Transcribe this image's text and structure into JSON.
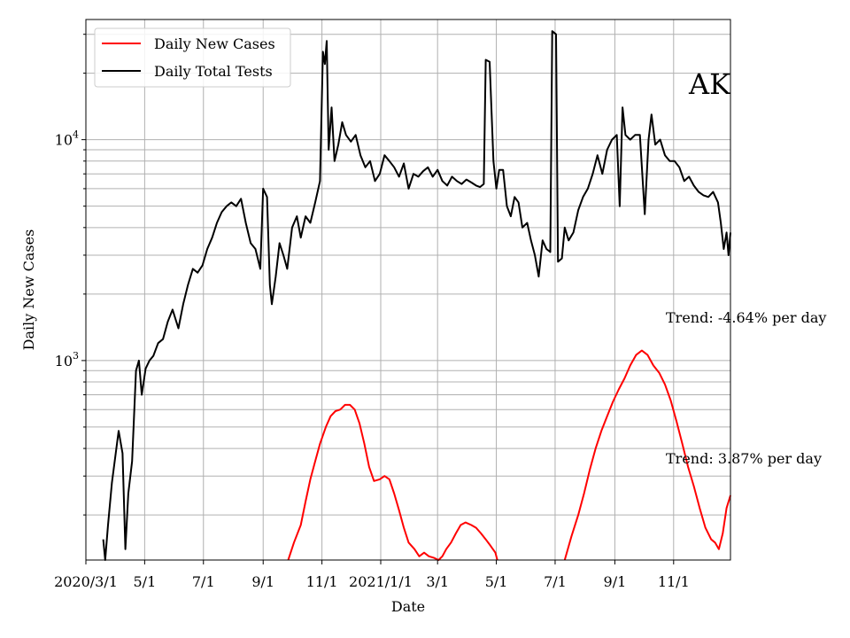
{
  "chart_data": {
    "type": "line",
    "title": "",
    "xlabel": "Date",
    "ylabel": "Daily New Cases",
    "y_scale": "log",
    "ylim": [
      125,
      35000
    ],
    "xlim": [
      "2020-03-01",
      "2021-12-30"
    ],
    "grid": true,
    "legend_position": "top-left",
    "x_ticks": [
      {
        "date": "2020-03-01",
        "label": "2020/3/1"
      },
      {
        "date": "2020-05-01",
        "label": "5/1"
      },
      {
        "date": "2020-07-01",
        "label": "7/1"
      },
      {
        "date": "2020-09-01",
        "label": "9/1"
      },
      {
        "date": "2020-11-01",
        "label": "11/1"
      },
      {
        "date": "2021-01-01",
        "label": "2021/1/1"
      },
      {
        "date": "2021-03-01",
        "label": "3/1"
      },
      {
        "date": "2021-05-01",
        "label": "5/1"
      },
      {
        "date": "2021-07-01",
        "label": "7/1"
      },
      {
        "date": "2021-09-01",
        "label": "9/1"
      },
      {
        "date": "2021-11-01",
        "label": "11/1"
      }
    ],
    "y_major_ticks": [
      {
        "value": 1000,
        "base": "10",
        "exp": "3"
      },
      {
        "value": 10000,
        "base": "10",
        "exp": "4"
      }
    ],
    "state_label": "AK",
    "annotations": [
      {
        "text": "Trend: -4.64% per day"
      },
      {
        "text": "Trend: 3.87% per day"
      }
    ],
    "series": [
      {
        "name": "Daily New Cases",
        "color": "#ff0000",
        "points": [
          [
            "2020-09-27",
            125
          ],
          [
            "2020-10-03",
            150
          ],
          [
            "2020-10-10",
            180
          ],
          [
            "2020-10-15",
            230
          ],
          [
            "2020-10-20",
            290
          ],
          [
            "2020-10-25",
            350
          ],
          [
            "2020-10-30",
            420
          ],
          [
            "2020-11-05",
            500
          ],
          [
            "2020-11-10",
            560
          ],
          [
            "2020-11-15",
            590
          ],
          [
            "2020-11-20",
            600
          ],
          [
            "2020-11-25",
            630
          ],
          [
            "2020-11-30",
            630
          ],
          [
            "2020-12-05",
            600
          ],
          [
            "2020-12-10",
            520
          ],
          [
            "2020-12-15",
            420
          ],
          [
            "2020-12-20",
            330
          ],
          [
            "2020-12-25",
            285
          ],
          [
            "2020-12-31",
            290
          ],
          [
            "2021-01-05",
            300
          ],
          [
            "2021-01-10",
            290
          ],
          [
            "2021-01-15",
            250
          ],
          [
            "2021-01-20",
            210
          ],
          [
            "2021-01-25",
            175
          ],
          [
            "2021-01-30",
            150
          ],
          [
            "2021-02-05",
            140
          ],
          [
            "2021-02-10",
            130
          ],
          [
            "2021-02-15",
            135
          ],
          [
            "2021-02-20",
            130
          ],
          [
            "2021-02-25",
            128
          ],
          [
            "2021-03-02",
            125
          ],
          [
            "2021-03-06",
            130
          ],
          [
            "2021-03-10",
            140
          ],
          [
            "2021-03-15",
            150
          ],
          [
            "2021-03-20",
            165
          ],
          [
            "2021-03-25",
            180
          ],
          [
            "2021-03-30",
            185
          ],
          [
            "2021-04-05",
            180
          ],
          [
            "2021-04-10",
            175
          ],
          [
            "2021-04-15",
            165
          ],
          [
            "2021-04-20",
            155
          ],
          [
            "2021-04-25",
            145
          ],
          [
            "2021-04-30",
            135
          ],
          [
            "2021-05-02",
            125
          ]
        ],
        "points2": [
          [
            "2021-07-11",
            125
          ],
          [
            "2021-07-18",
            160
          ],
          [
            "2021-07-25",
            200
          ],
          [
            "2021-07-31",
            250
          ],
          [
            "2021-08-06",
            320
          ],
          [
            "2021-08-12",
            400
          ],
          [
            "2021-08-18",
            480
          ],
          [
            "2021-08-24",
            560
          ],
          [
            "2021-08-30",
            650
          ],
          [
            "2021-09-05",
            740
          ],
          [
            "2021-09-11",
            830
          ],
          [
            "2021-09-17",
            950
          ],
          [
            "2021-09-23",
            1060
          ],
          [
            "2021-09-29",
            1110
          ],
          [
            "2021-10-05",
            1060
          ],
          [
            "2021-10-11",
            950
          ],
          [
            "2021-10-17",
            880
          ],
          [
            "2021-10-23",
            780
          ],
          [
            "2021-10-29",
            660
          ],
          [
            "2021-11-04",
            530
          ],
          [
            "2021-11-10",
            420
          ],
          [
            "2021-11-16",
            330
          ],
          [
            "2021-11-22",
            270
          ],
          [
            "2021-11-28",
            215
          ],
          [
            "2021-12-04",
            175
          ],
          [
            "2021-12-10",
            155
          ],
          [
            "2021-12-14",
            150
          ],
          [
            "2021-12-18",
            140
          ],
          [
            "2021-12-22",
            165
          ],
          [
            "2021-12-26",
            215
          ],
          [
            "2021-12-30",
            245
          ]
        ]
      },
      {
        "name": "Daily Total Tests",
        "color": "#000000",
        "points": [
          [
            "2020-03-19",
            155
          ],
          [
            "2020-03-21",
            125
          ],
          [
            "2020-03-24",
            180
          ],
          [
            "2020-03-28",
            280
          ],
          [
            "2020-04-01",
            380
          ],
          [
            "2020-04-04",
            480
          ],
          [
            "2020-04-08",
            380
          ],
          [
            "2020-04-11",
            140
          ],
          [
            "2020-04-14",
            250
          ],
          [
            "2020-04-18",
            350
          ],
          [
            "2020-04-22",
            900
          ],
          [
            "2020-04-25",
            1000
          ],
          [
            "2020-04-28",
            700
          ],
          [
            "2020-05-02",
            920
          ],
          [
            "2020-05-06",
            1000
          ],
          [
            "2020-05-10",
            1050
          ],
          [
            "2020-05-15",
            1200
          ],
          [
            "2020-05-20",
            1250
          ],
          [
            "2020-05-25",
            1500
          ],
          [
            "2020-05-30",
            1700
          ],
          [
            "2020-06-05",
            1400
          ],
          [
            "2020-06-10",
            1800
          ],
          [
            "2020-06-15",
            2200
          ],
          [
            "2020-06-20",
            2600
          ],
          [
            "2020-06-25",
            2500
          ],
          [
            "2020-06-30",
            2700
          ],
          [
            "2020-07-05",
            3200
          ],
          [
            "2020-07-10",
            3600
          ],
          [
            "2020-07-15",
            4200
          ],
          [
            "2020-07-20",
            4700
          ],
          [
            "2020-07-25",
            5000
          ],
          [
            "2020-07-30",
            5200
          ],
          [
            "2020-08-04",
            5000
          ],
          [
            "2020-08-09",
            5400
          ],
          [
            "2020-08-14",
            4200
          ],
          [
            "2020-08-19",
            3400
          ],
          [
            "2020-08-24",
            3200
          ],
          [
            "2020-08-29",
            2600
          ],
          [
            "2020-09-01",
            6000
          ],
          [
            "2020-09-05",
            5500
          ],
          [
            "2020-09-08",
            2200
          ],
          [
            "2020-09-10",
            1800
          ],
          [
            "2020-09-14",
            2400
          ],
          [
            "2020-09-18",
            3400
          ],
          [
            "2020-09-22",
            3000
          ],
          [
            "2020-09-26",
            2600
          ],
          [
            "2020-10-01",
            4000
          ],
          [
            "2020-10-06",
            4500
          ],
          [
            "2020-10-10",
            3600
          ],
          [
            "2020-10-15",
            4500
          ],
          [
            "2020-10-20",
            4200
          ],
          [
            "2020-10-25",
            5200
          ],
          [
            "2020-10-30",
            6500
          ],
          [
            "2020-11-02",
            25000
          ],
          [
            "2020-11-04",
            22000
          ],
          [
            "2020-11-06",
            28000
          ],
          [
            "2020-11-08",
            9000
          ],
          [
            "2020-11-11",
            14000
          ],
          [
            "2020-11-14",
            8000
          ],
          [
            "2020-11-18",
            9500
          ],
          [
            "2020-11-22",
            12000
          ],
          [
            "2020-11-26",
            10500
          ],
          [
            "2020-12-01",
            9800
          ],
          [
            "2020-12-06",
            10500
          ],
          [
            "2020-12-11",
            8500
          ],
          [
            "2020-12-16",
            7500
          ],
          [
            "2020-12-21",
            8000
          ],
          [
            "2020-12-26",
            6500
          ],
          [
            "2020-12-31",
            7000
          ],
          [
            "2021-01-05",
            8500
          ],
          [
            "2021-01-10",
            8000
          ],
          [
            "2021-01-15",
            7500
          ],
          [
            "2021-01-20",
            6800
          ],
          [
            "2021-01-25",
            7800
          ],
          [
            "2021-01-30",
            6000
          ],
          [
            "2021-02-04",
            7000
          ],
          [
            "2021-02-09",
            6800
          ],
          [
            "2021-02-14",
            7200
          ],
          [
            "2021-02-19",
            7500
          ],
          [
            "2021-02-24",
            6800
          ],
          [
            "2021-03-01",
            7300
          ],
          [
            "2021-03-06",
            6500
          ],
          [
            "2021-03-11",
            6200
          ],
          [
            "2021-03-16",
            6800
          ],
          [
            "2021-03-21",
            6500
          ],
          [
            "2021-03-26",
            6300
          ],
          [
            "2021-03-31",
            6600
          ],
          [
            "2021-04-05",
            6400
          ],
          [
            "2021-04-10",
            6200
          ],
          [
            "2021-04-14",
            6100
          ],
          [
            "2021-04-18",
            6300
          ],
          [
            "2021-04-20",
            23000
          ],
          [
            "2021-04-24",
            22500
          ],
          [
            "2021-04-28",
            8000
          ],
          [
            "2021-05-01",
            6000
          ],
          [
            "2021-05-04",
            7300
          ],
          [
            "2021-05-08",
            7300
          ],
          [
            "2021-05-12",
            5000
          ],
          [
            "2021-05-16",
            4500
          ],
          [
            "2021-05-20",
            5500
          ],
          [
            "2021-05-24",
            5200
          ],
          [
            "2021-05-28",
            4000
          ],
          [
            "2021-06-02",
            4200
          ],
          [
            "2021-06-06",
            3500
          ],
          [
            "2021-06-10",
            3000
          ],
          [
            "2021-06-14",
            2400
          ],
          [
            "2021-06-18",
            3500
          ],
          [
            "2021-06-22",
            3200
          ],
          [
            "2021-06-26",
            3100
          ],
          [
            "2021-06-28",
            31000
          ],
          [
            "2021-07-02",
            30000
          ],
          [
            "2021-07-04",
            2800
          ],
          [
            "2021-07-08",
            2900
          ],
          [
            "2021-07-11",
            4000
          ],
          [
            "2021-07-15",
            3500
          ],
          [
            "2021-07-20",
            3800
          ],
          [
            "2021-07-25",
            4800
          ],
          [
            "2021-07-30",
            5500
          ],
          [
            "2021-08-04",
            6000
          ],
          [
            "2021-08-09",
            7000
          ],
          [
            "2021-08-14",
            8500
          ],
          [
            "2021-08-19",
            7000
          ],
          [
            "2021-08-24",
            9000
          ],
          [
            "2021-08-29",
            10000
          ],
          [
            "2021-09-03",
            10500
          ],
          [
            "2021-09-06",
            5000
          ],
          [
            "2021-09-09",
            14000
          ],
          [
            "2021-09-12",
            10500
          ],
          [
            "2021-09-17",
            10000
          ],
          [
            "2021-09-22",
            10500
          ],
          [
            "2021-09-27",
            10500
          ],
          [
            "2021-10-02",
            4600
          ],
          [
            "2021-10-06",
            10000
          ],
          [
            "2021-10-09",
            13000
          ],
          [
            "2021-10-13",
            9500
          ],
          [
            "2021-10-18",
            10000
          ],
          [
            "2021-10-23",
            8500
          ],
          [
            "2021-10-28",
            8000
          ],
          [
            "2021-11-02",
            8000
          ],
          [
            "2021-11-07",
            7500
          ],
          [
            "2021-11-12",
            6500
          ],
          [
            "2021-11-17",
            6800
          ],
          [
            "2021-11-22",
            6200
          ],
          [
            "2021-11-27",
            5800
          ],
          [
            "2021-12-02",
            5600
          ],
          [
            "2021-12-07",
            5500
          ],
          [
            "2021-12-12",
            5800
          ],
          [
            "2021-12-17",
            5200
          ],
          [
            "2021-12-20",
            4200
          ],
          [
            "2021-12-23",
            3200
          ],
          [
            "2021-12-26",
            3800
          ],
          [
            "2021-12-28",
            3000
          ],
          [
            "2021-12-30",
            3800
          ]
        ]
      }
    ]
  }
}
